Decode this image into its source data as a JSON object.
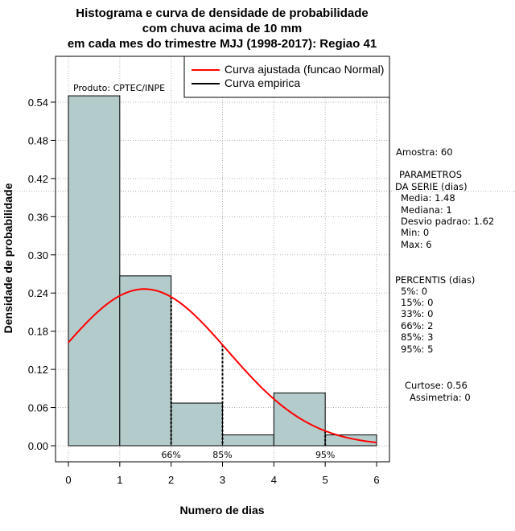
{
  "chart_data": {
    "type": "bar",
    "title_lines": [
      "Histograma e curva de densidade de probabilidade",
      "com chuva acima de 10 mm",
      "em cada mes do trimestre MJJ (1998-2017): Regiao 41"
    ],
    "xlabel": "Numero de dias",
    "ylabel": "Densidade de probabilidade",
    "xlim": [
      0,
      6
    ],
    "ylim": [
      0,
      0.6
    ],
    "x_ticks": [
      "0",
      "1",
      "2",
      "3",
      "4",
      "5",
      "6"
    ],
    "y_ticks": [
      "0.00",
      "0.06",
      "0.12",
      "0.18",
      "0.24",
      "0.30",
      "0.36",
      "0.42",
      "0.48",
      "0.54"
    ],
    "grid": true,
    "bins": [
      {
        "from": 0,
        "to": 1,
        "density": 0.55
      },
      {
        "from": 1,
        "to": 2,
        "density": 0.267
      },
      {
        "from": 2,
        "to": 3,
        "density": 0.067
      },
      {
        "from": 3,
        "to": 4,
        "density": 0.017
      },
      {
        "from": 4,
        "to": 5,
        "density": 0.083
      },
      {
        "from": 5,
        "to": 6,
        "density": 0.017
      }
    ],
    "normal_fit": {
      "mean": 1.48,
      "sd": 1.62
    },
    "percentile_markers": [
      {
        "label": "66%",
        "x": 2
      },
      {
        "label": "85%",
        "x": 3
      },
      {
        "label": "95%",
        "x": 5
      }
    ],
    "credit": "Produto: CPTEC/INPE",
    "legend": {
      "position": "top-right",
      "entries": [
        {
          "label": "Curva ajustada (funcao Normal)",
          "color": "#ff0000"
        },
        {
          "label": "Curva empirica",
          "color": "#000000"
        }
      ]
    },
    "colors": {
      "bar_fill": "#b4cbcb",
      "curve": "#ff0000",
      "grid": "#b3b3b3"
    }
  },
  "side_panel": {
    "sample": "Amostra: 60",
    "params_title_1": "PARAMETROS",
    "params_title_2": "DA SERIE (dias)",
    "params": [
      "Media: 1.48",
      "Mediana: 1",
      "Desvio padrao: 1.62",
      "Min: 0",
      "Max: 6"
    ],
    "percentiles_title": "PERCENTIS (dias)",
    "percentiles": [
      "5%: 0",
      "15%: 0",
      "33%: 0",
      "66%: 2",
      "85%: 3",
      "95%: 5"
    ],
    "kurtosis": "Curtose: 0.56",
    "skewness": "Assimetria: 0"
  }
}
